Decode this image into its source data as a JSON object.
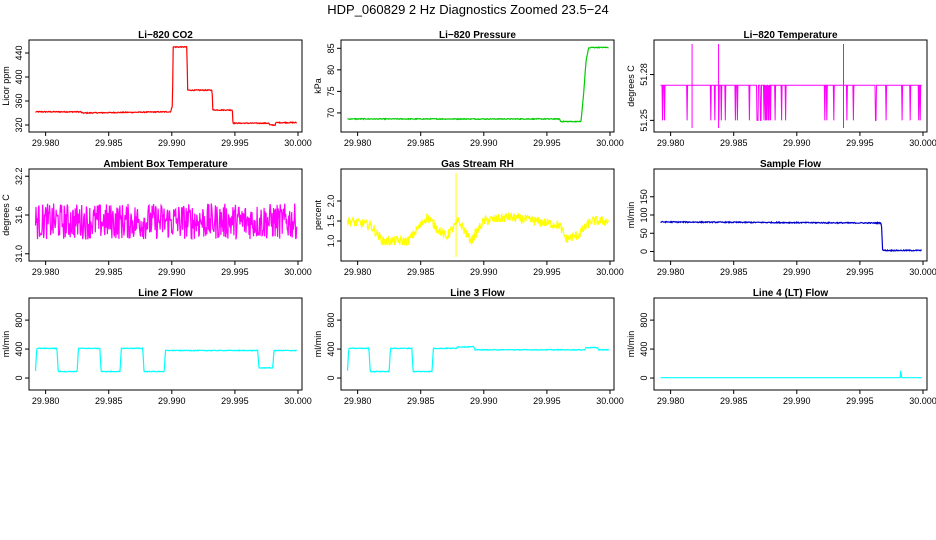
{
  "figure": {
    "title": "HDP_060829  2 Hz Diagnostics Zoomed 23.5−24"
  },
  "chart_data": [
    {
      "type": "line",
      "title": "Li−820 CO2",
      "ylabel": "Licor ppm",
      "xlabel": "",
      "color": "#ff0000",
      "xlim": [
        29.979,
        30.0
      ],
      "ylim": [
        315,
        455
      ],
      "xticks": [
        29.98,
        29.985,
        29.99,
        29.995,
        30.0
      ],
      "xticklabels": [
        "29.980",
        "29.985",
        "29.990",
        "29.995",
        "30.000"
      ],
      "yticks": [
        320,
        360,
        400,
        440
      ],
      "yticklabels": [
        "320",
        "360",
        "400",
        "440"
      ],
      "noise": 0.8,
      "spikes": [],
      "series": [
        {
          "name": "Li-820 CO2",
          "x": [
            29.9792,
            29.9828,
            29.9829,
            29.9898,
            29.9899,
            29.99005,
            29.9901,
            29.9912,
            29.99125,
            29.9932,
            29.99325,
            29.9948,
            29.99485,
            29.9977,
            29.99775,
            29.9982,
            29.99825,
            29.9999
          ],
          "y": [
            342,
            342,
            340,
            342,
            342,
            352,
            450,
            450,
            378,
            378,
            345,
            345,
            323,
            323,
            320,
            320,
            324,
            324
          ]
        }
      ]
    },
    {
      "type": "line",
      "title": "Li−820 Pressure",
      "ylabel": "kPa",
      "xlabel": "",
      "color": "#00cd00",
      "xlim": [
        29.979,
        30.0
      ],
      "ylim": [
        66.5,
        86
      ],
      "xticks": [
        29.98,
        29.985,
        29.99,
        29.995,
        30.0
      ],
      "xticklabels": [
        "29.980",
        "29.985",
        "29.990",
        "29.995",
        "30.000"
      ],
      "yticks": [
        70,
        75,
        80,
        85
      ],
      "yticklabels": [
        "70",
        "75",
        "80",
        "85"
      ],
      "noise": 0.1,
      "spikes": [],
      "series": [
        {
          "name": "Li-820 Pressure",
          "x": [
            29.9792,
            29.996,
            29.9961,
            29.9977,
            29.9979,
            29.9981,
            29.9983,
            29.9985,
            29.9999
          ],
          "y": [
            68.6,
            68.6,
            68.0,
            68.0,
            74.0,
            82.0,
            85.0,
            85.2,
            85.2
          ]
        }
      ]
    },
    {
      "type": "line",
      "title": "Li−820 Temperature",
      "ylabel": "degrees C",
      "xlabel": "",
      "color": "#ff00ff",
      "xlim": [
        29.979,
        30.0
      ],
      "ylim": [
        51.245,
        51.3
      ],
      "xticks": [
        29.98,
        29.985,
        29.99,
        29.995,
        30.0
      ],
      "xticklabels": [
        "29.980",
        "29.985",
        "29.990",
        "29.995",
        "30.000"
      ],
      "yticks": [
        51.25,
        51.28
      ],
      "yticklabels": [
        "51.25",
        "51.28"
      ],
      "toggle": [
        51.25,
        51.273
      ],
      "noise": 0,
      "spikes": [
        29.9817,
        29.9838,
        29.9937
      ],
      "series": [
        {
          "name": "Li-820 Temperature",
          "x": [
            29.9792,
            29.9999
          ],
          "y": [
            51.273,
            51.273
          ]
        }
      ]
    },
    {
      "type": "line",
      "title": "Ambient Box Temperature",
      "ylabel": "degrees C",
      "xlabel": "",
      "color": "#ff00ff",
      "xlim": [
        29.979,
        30.0
      ],
      "ylim": [
        30.95,
        32.25
      ],
      "xticks": [
        29.98,
        29.985,
        29.99,
        29.995,
        30.0
      ],
      "xticklabels": [
        "29.980",
        "29.985",
        "29.990",
        "29.995",
        "30.000"
      ],
      "yticks": [
        31.0,
        31.6,
        32.2
      ],
      "yticklabels": [
        "31.0",
        "31.6",
        "32.2"
      ],
      "noise": 0.28,
      "spikes": [],
      "series": [
        {
          "name": "Ambient Box Temperature",
          "x": [
            29.9792,
            29.9999
          ],
          "y": [
            31.5,
            31.5
          ]
        }
      ]
    },
    {
      "type": "line",
      "title": "Gas Stream RH",
      "ylabel": "percent",
      "xlabel": "",
      "color": "#ffff00",
      "xlim": [
        29.979,
        30.0
      ],
      "ylim": [
        0.6,
        2.7
      ],
      "xticks": [
        29.98,
        29.985,
        29.99,
        29.995,
        30.0
      ],
      "xticklabels": [
        "29.980",
        "29.985",
        "29.990",
        "29.995",
        "30.000"
      ],
      "yticks": [
        1.0,
        1.5,
        2.0
      ],
      "yticklabels": [
        "1.0",
        "1.5",
        "2.0"
      ],
      "noise": 0.12,
      "spikes": [
        29.9878
      ],
      "series": [
        {
          "name": "Gas Stream RH",
          "x": [
            29.9792,
            29.981,
            29.982,
            29.984,
            29.9855,
            29.987,
            29.988,
            29.989,
            29.99,
            29.992,
            29.994,
            29.996,
            29.9965,
            29.9975,
            29.9985,
            29.9999
          ],
          "y": [
            1.5,
            1.4,
            1.0,
            1.0,
            1.6,
            1.1,
            1.5,
            1.0,
            1.5,
            1.6,
            1.5,
            1.4,
            1.05,
            1.15,
            1.5,
            1.5
          ]
        }
      ]
    },
    {
      "type": "line",
      "title": "Sample Flow",
      "ylabel": "ml/min",
      "xlabel": "",
      "color": "#0000cd",
      "xlim": [
        29.979,
        30.0
      ],
      "ylim": [
        -15,
        215
      ],
      "xticks": [
        29.98,
        29.985,
        29.99,
        29.995,
        30.0
      ],
      "xticklabels": [
        "29.980",
        "29.985",
        "29.990",
        "29.995",
        "30.000"
      ],
      "yticks": [
        0,
        50,
        100,
        150
      ],
      "yticklabels": [
        "0",
        "50",
        "100",
        "150"
      ],
      "noise": 1.5,
      "spikes": [],
      "series": [
        {
          "name": "Sample Flow",
          "x": [
            29.9792,
            29.9965,
            29.9967,
            29.9968,
            29.9999
          ],
          "y": [
            81,
            78,
            78,
            3,
            3
          ]
        }
      ]
    },
    {
      "type": "line",
      "title": "Line 2 Flow",
      "ylabel": "ml/min",
      "xlabel": "",
      "color": "#00ffff",
      "xlim": [
        29.979,
        30.0
      ],
      "ylim": [
        -110,
        1050
      ],
      "xticks": [
        29.98,
        29.985,
        29.99,
        29.995,
        30.0
      ],
      "xticklabels": [
        "29.980",
        "29.985",
        "29.990",
        "29.995",
        "30.000"
      ],
      "yticks": [
        0,
        400,
        800
      ],
      "yticklabels": [
        "0",
        "400",
        "800"
      ],
      "noise": 5,
      "spikes": [],
      "series": [
        {
          "name": "Line 2 Flow",
          "x": [
            29.9792,
            29.9793,
            29.9809,
            29.981,
            29.9825,
            29.9826,
            29.9843,
            29.9844,
            29.9859,
            29.986,
            29.9877,
            29.9878,
            29.9894,
            29.9895,
            29.9968,
            29.9969,
            29.998,
            29.9981,
            29.9999
          ],
          "y": [
            100,
            410,
            410,
            90,
            90,
            410,
            410,
            90,
            90,
            410,
            410,
            90,
            90,
            380,
            380,
            140,
            140,
            380,
            380
          ]
        }
      ]
    },
    {
      "type": "line",
      "title": "Line 3 Flow",
      "ylabel": "ml/min",
      "xlabel": "",
      "color": "#00ffff",
      "xlim": [
        29.979,
        30.0
      ],
      "ylim": [
        -110,
        1050
      ],
      "xticks": [
        29.98,
        29.985,
        29.99,
        29.995,
        30.0
      ],
      "xticklabels": [
        "29.980",
        "29.985",
        "29.990",
        "29.995",
        "30.000"
      ],
      "yticks": [
        0,
        400,
        800
      ],
      "yticklabels": [
        "0",
        "400",
        "800"
      ],
      "noise": 5,
      "spikes": [],
      "series": [
        {
          "name": "Line 3 Flow",
          "x": [
            29.9792,
            29.9793,
            29.9809,
            29.981,
            29.9825,
            29.9826,
            29.9843,
            29.9844,
            29.9859,
            29.986,
            29.9878,
            29.9879,
            29.9892,
            29.9893,
            29.998,
            29.9981,
            29.999,
            29.9991,
            29.9999
          ],
          "y": [
            100,
            410,
            410,
            90,
            90,
            410,
            410,
            90,
            90,
            410,
            410,
            430,
            430,
            390,
            390,
            420,
            420,
            390,
            390
          ]
        }
      ]
    },
    {
      "type": "line",
      "title": "Line 4 (LT) Flow",
      "ylabel": "ml/min",
      "xlabel": "",
      "color": "#00ffff",
      "xlim": [
        29.979,
        30.0
      ],
      "ylim": [
        -110,
        1050
      ],
      "xticks": [
        29.98,
        29.985,
        29.99,
        29.995,
        30.0
      ],
      "xticklabels": [
        "29.980",
        "29.985",
        "29.990",
        "29.995",
        "30.000"
      ],
      "yticks": [
        0,
        400,
        800
      ],
      "yticklabels": [
        "0",
        "400",
        "800"
      ],
      "noise": 0,
      "spikes": [],
      "series": [
        {
          "name": "Line 4 (LT) Flow",
          "x": [
            29.9792,
            29.9982,
            29.99822,
            29.99826,
            29.9983,
            29.9999
          ],
          "y": [
            5,
            5,
            80,
            80,
            5,
            5
          ]
        }
      ]
    }
  ]
}
